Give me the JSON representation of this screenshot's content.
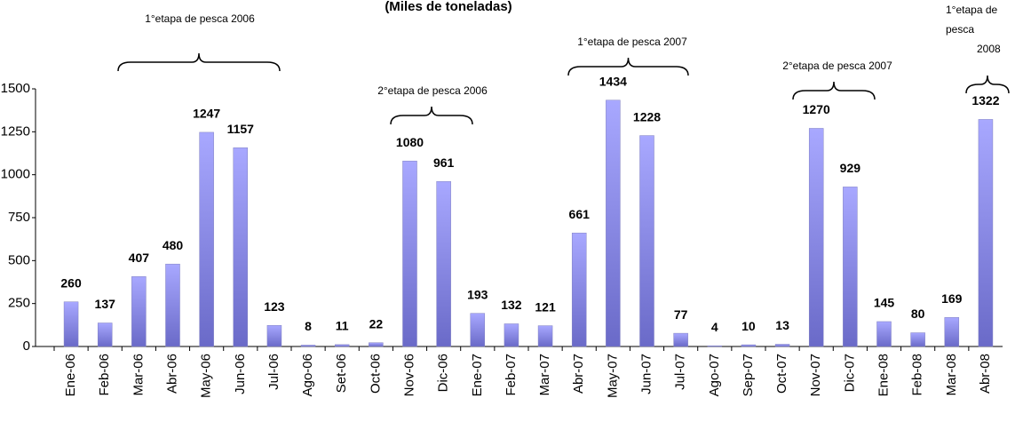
{
  "chart_data": {
    "type": "bar",
    "title": "(Miles de toneladas)",
    "categories": [
      "Ene-06",
      "Feb-06",
      "Mar-06",
      "Abr-06",
      "May-06",
      "Jun-06",
      "Jul-06",
      "Ago-06",
      "Set-06",
      "Oct-06",
      "Nov-06",
      "Dic-06",
      "Ene-07",
      "Feb-07",
      "Mar-07",
      "Abr-07",
      "May-07",
      "Jun-07",
      "Jul-07",
      "Ago-07",
      "Sep-07",
      "Oct-07",
      "Nov-07",
      "Dic-07",
      "Ene-08",
      "Feb-08",
      "Mar-08",
      "Abr-08"
    ],
    "values": [
      260,
      137,
      407,
      480,
      1247,
      1157,
      123,
      8,
      11,
      22,
      1080,
      961,
      193,
      132,
      121,
      661,
      1434,
      1228,
      77,
      4,
      10,
      13,
      1270,
      929,
      145,
      80,
      169,
      1322
    ],
    "color": "#8c8ce6",
    "ylim": [
      0,
      1500
    ],
    "yticks": [
      0,
      250,
      500,
      750,
      1000,
      1250,
      1500
    ],
    "annotations": [
      {
        "text": [
          "1°etapa de pesca 2006"
        ]
      },
      {
        "text": [
          "2°etapa de pesca 2006"
        ]
      },
      {
        "text": [
          "1°etapa de pesca 2007"
        ]
      },
      {
        "text": [
          "2°etapa de pesca 2007"
        ]
      },
      {
        "text": [
          "1°etapa de",
          "pesca",
          "2008"
        ]
      }
    ]
  }
}
